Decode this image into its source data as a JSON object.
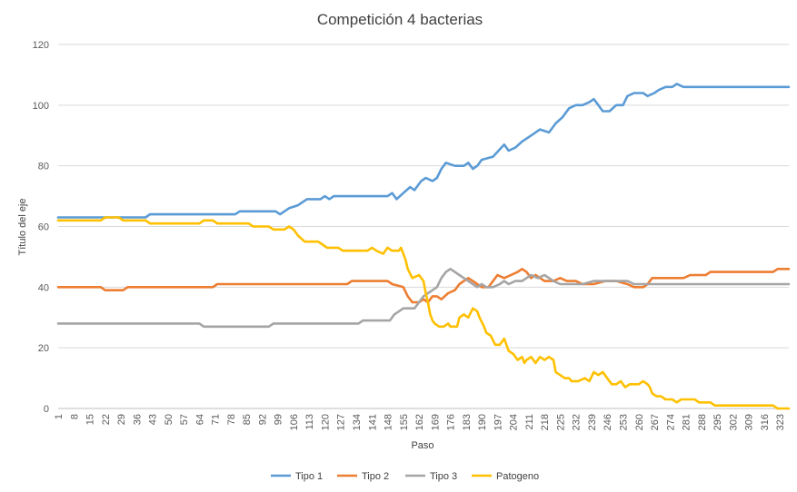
{
  "chart_data": {
    "type": "line",
    "title": "Competición 4 bacterias",
    "xlabel": "Paso",
    "ylabel": "Título del eje",
    "xlim": [
      1,
      327
    ],
    "ylim": [
      0,
      120
    ],
    "y_ticks": [
      0,
      20,
      40,
      60,
      80,
      100,
      120
    ],
    "x_tick_labels": [
      1,
      8,
      15,
      22,
      29,
      36,
      43,
      50,
      57,
      64,
      71,
      78,
      85,
      92,
      99,
      106,
      113,
      120,
      127,
      134,
      141,
      148,
      155,
      162,
      169,
      176,
      183,
      190,
      197,
      204,
      211,
      218,
      225,
      232,
      239,
      246,
      253,
      260,
      267,
      274,
      281,
      288,
      295,
      302,
      309,
      316,
      323
    ],
    "grid": true,
    "legend_position": "bottom",
    "series": [
      {
        "name": "Tipo 1",
        "color": "#5b9bd5",
        "points": [
          [
            1,
            63
          ],
          [
            20,
            63
          ],
          [
            40,
            63
          ],
          [
            42,
            64
          ],
          [
            80,
            64
          ],
          [
            82,
            65
          ],
          [
            98,
            65
          ],
          [
            100,
            64
          ],
          [
            104,
            66
          ],
          [
            108,
            67
          ],
          [
            112,
            69
          ],
          [
            118,
            69
          ],
          [
            120,
            70
          ],
          [
            122,
            69
          ],
          [
            124,
            70
          ],
          [
            148,
            70
          ],
          [
            150,
            71
          ],
          [
            152,
            69
          ],
          [
            155,
            71
          ],
          [
            158,
            73
          ],
          [
            160,
            72
          ],
          [
            163,
            75
          ],
          [
            165,
            76
          ],
          [
            168,
            75
          ],
          [
            170,
            76
          ],
          [
            172,
            79
          ],
          [
            174,
            81
          ],
          [
            178,
            80
          ],
          [
            182,
            80
          ],
          [
            184,
            81
          ],
          [
            186,
            79
          ],
          [
            188,
            80
          ],
          [
            190,
            82
          ],
          [
            195,
            83
          ],
          [
            200,
            87
          ],
          [
            202,
            85
          ],
          [
            205,
            86
          ],
          [
            208,
            88
          ],
          [
            212,
            90
          ],
          [
            216,
            92
          ],
          [
            220,
            91
          ],
          [
            223,
            94
          ],
          [
            226,
            96
          ],
          [
            229,
            99
          ],
          [
            232,
            100
          ],
          [
            235,
            100
          ],
          [
            238,
            101
          ],
          [
            240,
            102
          ],
          [
            242,
            100
          ],
          [
            244,
            98
          ],
          [
            247,
            98
          ],
          [
            250,
            100
          ],
          [
            253,
            100
          ],
          [
            255,
            103
          ],
          [
            258,
            104
          ],
          [
            262,
            104
          ],
          [
            264,
            103
          ],
          [
            267,
            104
          ],
          [
            269,
            105
          ],
          [
            272,
            106
          ],
          [
            275,
            106
          ],
          [
            277,
            107
          ],
          [
            280,
            106
          ],
          [
            327,
            106
          ]
        ]
      },
      {
        "name": "Tipo 2",
        "color": "#ed7d31",
        "points": [
          [
            1,
            40
          ],
          [
            20,
            40
          ],
          [
            22,
            39
          ],
          [
            30,
            39
          ],
          [
            32,
            40
          ],
          [
            70,
            40
          ],
          [
            72,
            41
          ],
          [
            130,
            41
          ],
          [
            132,
            42
          ],
          [
            148,
            42
          ],
          [
            150,
            41
          ],
          [
            155,
            40
          ],
          [
            157,
            37
          ],
          [
            159,
            35
          ],
          [
            162,
            35
          ],
          [
            164,
            36
          ],
          [
            166,
            35
          ],
          [
            168,
            37
          ],
          [
            170,
            37
          ],
          [
            172,
            36
          ],
          [
            175,
            38
          ],
          [
            178,
            39
          ],
          [
            180,
            41
          ],
          [
            182,
            42
          ],
          [
            184,
            43
          ],
          [
            186,
            42
          ],
          [
            188,
            41
          ],
          [
            190,
            40
          ],
          [
            193,
            40
          ],
          [
            195,
            42
          ],
          [
            197,
            44
          ],
          [
            200,
            43
          ],
          [
            203,
            44
          ],
          [
            206,
            45
          ],
          [
            208,
            46
          ],
          [
            210,
            45
          ],
          [
            212,
            43
          ],
          [
            214,
            44
          ],
          [
            218,
            42
          ],
          [
            222,
            42
          ],
          [
            225,
            43
          ],
          [
            228,
            42
          ],
          [
            232,
            42
          ],
          [
            235,
            41
          ],
          [
            240,
            41
          ],
          [
            245,
            42
          ],
          [
            250,
            42
          ],
          [
            255,
            41
          ],
          [
            258,
            40
          ],
          [
            262,
            40
          ],
          [
            264,
            41
          ],
          [
            266,
            43
          ],
          [
            280,
            43
          ],
          [
            283,
            44
          ],
          [
            290,
            44
          ],
          [
            292,
            45
          ],
          [
            320,
            45
          ],
          [
            322,
            46
          ],
          [
            327,
            46
          ]
        ]
      },
      {
        "name": "Tipo 3",
        "color": "#a5a5a5",
        "points": [
          [
            1,
            28
          ],
          [
            64,
            28
          ],
          [
            66,
            27
          ],
          [
            95,
            27
          ],
          [
            97,
            28
          ],
          [
            135,
            28
          ],
          [
            137,
            29
          ],
          [
            149,
            29
          ],
          [
            151,
            31
          ],
          [
            153,
            32
          ],
          [
            155,
            33
          ],
          [
            160,
            33
          ],
          [
            162,
            35
          ],
          [
            164,
            37
          ],
          [
            166,
            38
          ],
          [
            168,
            39
          ],
          [
            170,
            40
          ],
          [
            172,
            43
          ],
          [
            174,
            45
          ],
          [
            176,
            46
          ],
          [
            178,
            45
          ],
          [
            180,
            44
          ],
          [
            182,
            43
          ],
          [
            184,
            42
          ],
          [
            186,
            41
          ],
          [
            188,
            40
          ],
          [
            190,
            41
          ],
          [
            192,
            40
          ],
          [
            195,
            40
          ],
          [
            198,
            41
          ],
          [
            200,
            42
          ],
          [
            202,
            41
          ],
          [
            205,
            42
          ],
          [
            208,
            42
          ],
          [
            210,
            43
          ],
          [
            212,
            44
          ],
          [
            215,
            43
          ],
          [
            218,
            44
          ],
          [
            220,
            43
          ],
          [
            222,
            42
          ],
          [
            225,
            41
          ],
          [
            230,
            41
          ],
          [
            235,
            41
          ],
          [
            240,
            42
          ],
          [
            245,
            42
          ],
          [
            250,
            42
          ],
          [
            255,
            42
          ],
          [
            258,
            41
          ],
          [
            327,
            41
          ]
        ]
      },
      {
        "name": "Patogeno",
        "color": "#ffc000",
        "points": [
          [
            1,
            62
          ],
          [
            20,
            62
          ],
          [
            22,
            63
          ],
          [
            28,
            63
          ],
          [
            30,
            62
          ],
          [
            40,
            62
          ],
          [
            42,
            61
          ],
          [
            64,
            61
          ],
          [
            66,
            62
          ],
          [
            70,
            62
          ],
          [
            72,
            61
          ],
          [
            86,
            61
          ],
          [
            88,
            60
          ],
          [
            95,
            60
          ],
          [
            97,
            59
          ],
          [
            102,
            59
          ],
          [
            104,
            60
          ],
          [
            106,
            59
          ],
          [
            108,
            57
          ],
          [
            111,
            55
          ],
          [
            117,
            55
          ],
          [
            119,
            54
          ],
          [
            121,
            53
          ],
          [
            126,
            53
          ],
          [
            128,
            52
          ],
          [
            139,
            52
          ],
          [
            141,
            53
          ],
          [
            143,
            52
          ],
          [
            146,
            51
          ],
          [
            148,
            53
          ],
          [
            150,
            52
          ],
          [
            153,
            52
          ],
          [
            154,
            53
          ],
          [
            155,
            51
          ],
          [
            156,
            49
          ],
          [
            157,
            46
          ],
          [
            159,
            43
          ],
          [
            162,
            44
          ],
          [
            164,
            42
          ],
          [
            165,
            38
          ],
          [
            166,
            35
          ],
          [
            167,
            31
          ],
          [
            168,
            29
          ],
          [
            169,
            28
          ],
          [
            171,
            27
          ],
          [
            173,
            27
          ],
          [
            175,
            28
          ],
          [
            176,
            27
          ],
          [
            179,
            27
          ],
          [
            180,
            30
          ],
          [
            182,
            31
          ],
          [
            184,
            30
          ],
          [
            186,
            33
          ],
          [
            188,
            32
          ],
          [
            189,
            30
          ],
          [
            191,
            27
          ],
          [
            192,
            25
          ],
          [
            194,
            24
          ],
          [
            196,
            21
          ],
          [
            198,
            21
          ],
          [
            200,
            23
          ],
          [
            202,
            19
          ],
          [
            204,
            18
          ],
          [
            206,
            16
          ],
          [
            208,
            17
          ],
          [
            209,
            15
          ],
          [
            210,
            16
          ],
          [
            212,
            17
          ],
          [
            214,
            15
          ],
          [
            216,
            17
          ],
          [
            218,
            16
          ],
          [
            220,
            17
          ],
          [
            222,
            16
          ],
          [
            223,
            12
          ],
          [
            225,
            11
          ],
          [
            227,
            10
          ],
          [
            229,
            10
          ],
          [
            230,
            9
          ],
          [
            233,
            9
          ],
          [
            236,
            10
          ],
          [
            238,
            9
          ],
          [
            240,
            12
          ],
          [
            242,
            11
          ],
          [
            244,
            12
          ],
          [
            246,
            10
          ],
          [
            248,
            8
          ],
          [
            250,
            8
          ],
          [
            252,
            9
          ],
          [
            254,
            7
          ],
          [
            256,
            8
          ],
          [
            258,
            8
          ],
          [
            260,
            8
          ],
          [
            262,
            9
          ],
          [
            264,
            8
          ],
          [
            265,
            7
          ],
          [
            266,
            5
          ],
          [
            268,
            4
          ],
          [
            270,
            4
          ],
          [
            272,
            3
          ],
          [
            275,
            3
          ],
          [
            277,
            2
          ],
          [
            279,
            3
          ],
          [
            285,
            3
          ],
          [
            287,
            2
          ],
          [
            292,
            2
          ],
          [
            294,
            1
          ],
          [
            320,
            1
          ],
          [
            322,
            0
          ],
          [
            327,
            0
          ]
        ]
      }
    ]
  }
}
